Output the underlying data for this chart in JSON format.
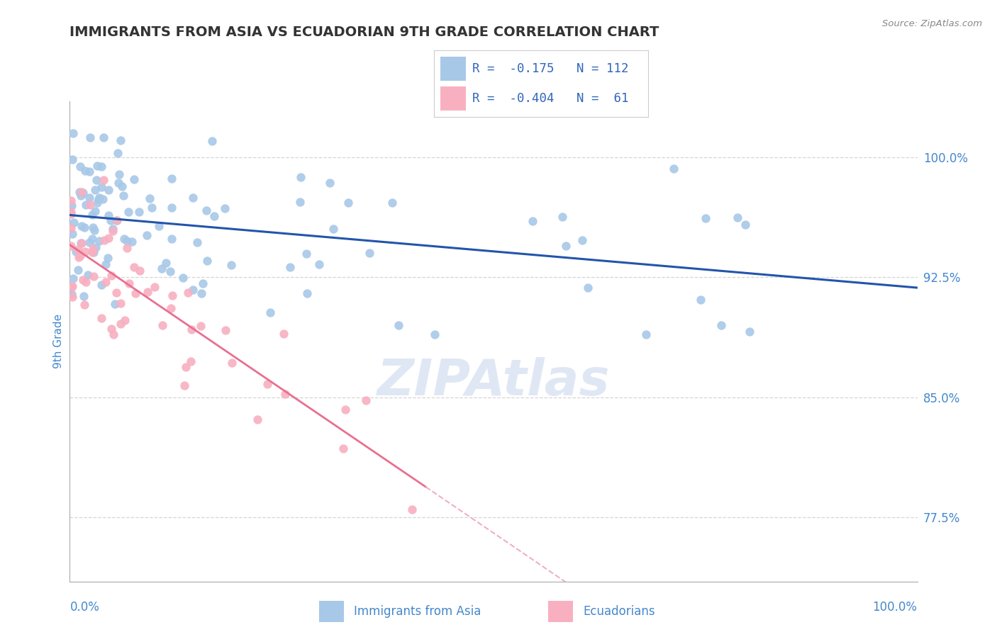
{
  "title": "IMMIGRANTS FROM ASIA VS ECUADORIAN 9TH GRADE CORRELATION CHART",
  "source_text": "Source: ZipAtlas.com",
  "ylabel": "9th Grade",
  "y_ticks": [
    77.5,
    85.0,
    92.5,
    100.0
  ],
  "y_tick_labels": [
    "77.5%",
    "85.0%",
    "92.5%",
    "100.0%"
  ],
  "xmin": 0.0,
  "xmax": 100.0,
  "ymin": 73.5,
  "ymax": 103.5,
  "legend_entries": [
    {
      "label": "Immigrants from Asia",
      "color": "#a8c8e8",
      "R": -0.175,
      "N": 112
    },
    {
      "label": "Ecuadorians",
      "color": "#f8b0c0",
      "R": -0.404,
      "N": 61
    }
  ],
  "blue_line_color": "#2255aa",
  "pink_line_color": "#e87090",
  "pink_line_dashed_color": "#f0b0c0",
  "grid_color": "#cccccc",
  "watermark_text": "ZIPAtlas",
  "watermark_color": "#ccd8ee",
  "title_color": "#333333",
  "axis_label_color": "#4488cc",
  "tick_label_color": "#4488cc",
  "background_color": "#ffffff",
  "blue_scatter_color": "#a8c8e8",
  "pink_scatter_color": "#f8b0c0",
  "blue_scatter_alpha": 0.9,
  "pink_scatter_alpha": 0.9,
  "scatter_size": 80,
  "n_blue": 112,
  "n_pink": 61,
  "R_blue": -0.175,
  "R_pink": -0.404,
  "blue_line_start_x": 0,
  "blue_line_end_x": 100,
  "blue_line_start_y": 96.8,
  "blue_line_end_y": 92.2,
  "pink_line_start_x": 0,
  "pink_line_solid_end_x": 42,
  "pink_line_end_x": 100,
  "pink_line_start_y": 95.5,
  "pink_line_end_y": 78.5
}
